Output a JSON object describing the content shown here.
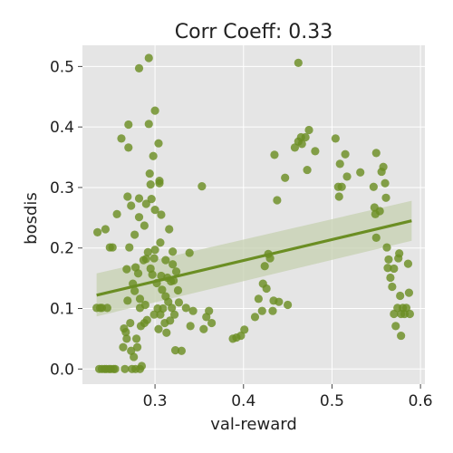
{
  "chart_data": {
    "type": "scatter",
    "title": "Corr Coeff: 0.33",
    "xlabel": "val-reward",
    "ylabel": "bosdis",
    "xlim": [
      0.218,
      0.605
    ],
    "ylim": [
      -0.025,
      0.535
    ],
    "xticks": [
      0.3,
      0.4,
      0.5,
      0.6
    ],
    "xtick_labels": [
      "0.3",
      "0.4",
      "0.5",
      "0.6"
    ],
    "yticks": [
      0.0,
      0.1,
      0.2,
      0.3,
      0.4,
      0.5
    ],
    "ytick_labels": [
      "0.0",
      "0.1",
      "0.2",
      "0.3",
      "0.4",
      "0.5"
    ],
    "grid": true,
    "background": "#e5e5e5",
    "point_color": "#6b8e23",
    "line_color": "#6b8e23",
    "band_color": "#c5d0b0",
    "regression": {
      "x": [
        0.234,
        0.59
      ],
      "y": [
        0.122,
        0.245
      ],
      "ci_upper": [
        0.158,
        0.278
      ],
      "ci_lower": [
        0.087,
        0.212
      ]
    },
    "points": [
      [
        0.234,
        0.101
      ],
      [
        0.235,
        0.226
      ],
      [
        0.237,
        0.0
      ],
      [
        0.238,
        0.101
      ],
      [
        0.24,
        0.0
      ],
      [
        0.24,
        0.101
      ],
      [
        0.243,
        0.0
      ],
      [
        0.244,
        0.231
      ],
      [
        0.245,
        0.0
      ],
      [
        0.246,
        0.101
      ],
      [
        0.248,
        0.0
      ],
      [
        0.249,
        0.201
      ],
      [
        0.25,
        0.0
      ],
      [
        0.252,
        0.201
      ],
      [
        0.253,
        0.0
      ],
      [
        0.255,
        0.0
      ],
      [
        0.257,
        0.256
      ],
      [
        0.262,
        0.381
      ],
      [
        0.264,
        0.036
      ],
      [
        0.265,
        0.067
      ],
      [
        0.266,
        0.0
      ],
      [
        0.267,
        0.061
      ],
      [
        0.268,
        0.165
      ],
      [
        0.268,
        0.05
      ],
      [
        0.269,
        0.113
      ],
      [
        0.269,
        0.285
      ],
      [
        0.27,
        0.404
      ],
      [
        0.27,
        0.366
      ],
      [
        0.271,
        0.201
      ],
      [
        0.272,
        0.076
      ],
      [
        0.273,
        0.03
      ],
      [
        0.273,
        0.27
      ],
      [
        0.274,
        0.0
      ],
      [
        0.275,
        0.141
      ],
      [
        0.276,
        0.02
      ],
      [
        0.277,
        0.222
      ],
      [
        0.277,
        0.129
      ],
      [
        0.278,
        0.168
      ],
      [
        0.278,
        0.0
      ],
      [
        0.279,
        0.05
      ],
      [
        0.28,
        0.036
      ],
      [
        0.281,
        0.158
      ],
      [
        0.282,
        0.497
      ],
      [
        0.282,
        0.282
      ],
      [
        0.282,
        0.251
      ],
      [
        0.283,
        0.116
      ],
      [
        0.283,
        0.101
      ],
      [
        0.283,
        0.0
      ],
      [
        0.284,
        0.071
      ],
      [
        0.285,
        0.005
      ],
      [
        0.287,
        0.18
      ],
      [
        0.288,
        0.076
      ],
      [
        0.288,
        0.237
      ],
      [
        0.289,
        0.106
      ],
      [
        0.29,
        0.273
      ],
      [
        0.29,
        0.182
      ],
      [
        0.291,
        0.081
      ],
      [
        0.292,
        0.193
      ],
      [
        0.293,
        0.514
      ],
      [
        0.293,
        0.405
      ],
      [
        0.294,
        0.323
      ],
      [
        0.295,
        0.305
      ],
      [
        0.295,
        0.166
      ],
      [
        0.296,
        0.281
      ],
      [
        0.297,
        0.156
      ],
      [
        0.298,
        0.352
      ],
      [
        0.299,
        0.183
      ],
      [
        0.299,
        0.09
      ],
      [
        0.3,
        0.427
      ],
      [
        0.3,
        0.263
      ],
      [
        0.3,
        0.197
      ],
      [
        0.302,
        0.142
      ],
      [
        0.303,
        0.1
      ],
      [
        0.304,
        0.373
      ],
      [
        0.304,
        0.066
      ],
      [
        0.305,
        0.311
      ],
      [
        0.305,
        0.307
      ],
      [
        0.306,
        0.209
      ],
      [
        0.306,
        0.09
      ],
      [
        0.307,
        0.255
      ],
      [
        0.307,
        0.154
      ],
      [
        0.308,
        0.131
      ],
      [
        0.309,
        0.1
      ],
      [
        0.311,
        0.076
      ],
      [
        0.312,
        0.18
      ],
      [
        0.312,
        0.12
      ],
      [
        0.313,
        0.06
      ],
      [
        0.314,
        0.151
      ],
      [
        0.315,
        0.111
      ],
      [
        0.316,
        0.231
      ],
      [
        0.317,
        0.08
      ],
      [
        0.318,
        0.145
      ],
      [
        0.319,
        0.101
      ],
      [
        0.32,
        0.194
      ],
      [
        0.32,
        0.173
      ],
      [
        0.321,
        0.146
      ],
      [
        0.322,
        0.09
      ],
      [
        0.323,
        0.031
      ],
      [
        0.324,
        0.161
      ],
      [
        0.326,
        0.13
      ],
      [
        0.327,
        0.11
      ],
      [
        0.33,
        0.03
      ],
      [
        0.335,
        0.101
      ],
      [
        0.339,
        0.192
      ],
      [
        0.34,
        0.071
      ],
      [
        0.343,
        0.096
      ],
      [
        0.353,
        0.302
      ],
      [
        0.355,
        0.066
      ],
      [
        0.358,
        0.086
      ],
      [
        0.361,
        0.096
      ],
      [
        0.364,
        0.076
      ],
      [
        0.388,
        0.05
      ],
      [
        0.392,
        0.052
      ],
      [
        0.397,
        0.055
      ],
      [
        0.401,
        0.065
      ],
      [
        0.413,
        0.086
      ],
      [
        0.417,
        0.116
      ],
      [
        0.421,
        0.096
      ],
      [
        0.422,
        0.141
      ],
      [
        0.424,
        0.17
      ],
      [
        0.426,
        0.133
      ],
      [
        0.428,
        0.19
      ],
      [
        0.43,
        0.183
      ],
      [
        0.433,
        0.096
      ],
      [
        0.434,
        0.113
      ],
      [
        0.435,
        0.354
      ],
      [
        0.438,
        0.279
      ],
      [
        0.44,
        0.111
      ],
      [
        0.447,
        0.316
      ],
      [
        0.45,
        0.106
      ],
      [
        0.458,
        0.366
      ],
      [
        0.462,
        0.506
      ],
      [
        0.462,
        0.376
      ],
      [
        0.465,
        0.383
      ],
      [
        0.466,
        0.372
      ],
      [
        0.47,
        0.383
      ],
      [
        0.472,
        0.329
      ],
      [
        0.474,
        0.395
      ],
      [
        0.481,
        0.36
      ],
      [
        0.504,
        0.381
      ],
      [
        0.507,
        0.301
      ],
      [
        0.508,
        0.285
      ],
      [
        0.509,
        0.339
      ],
      [
        0.511,
        0.301
      ],
      [
        0.515,
        0.355
      ],
      [
        0.517,
        0.318
      ],
      [
        0.532,
        0.325
      ],
      [
        0.547,
        0.301
      ],
      [
        0.548,
        0.267
      ],
      [
        0.549,
        0.256
      ],
      [
        0.55,
        0.357
      ],
      [
        0.55,
        0.217
      ],
      [
        0.554,
        0.261
      ],
      [
        0.556,
        0.326
      ],
      [
        0.558,
        0.334
      ],
      [
        0.56,
        0.307
      ],
      [
        0.561,
        0.283
      ],
      [
        0.562,
        0.201
      ],
      [
        0.563,
        0.167
      ],
      [
        0.564,
        0.181
      ],
      [
        0.566,
        0.151
      ],
      [
        0.568,
        0.136
      ],
      [
        0.57,
        0.091
      ],
      [
        0.57,
        0.166
      ],
      [
        0.572,
        0.071
      ],
      [
        0.574,
        0.101
      ],
      [
        0.575,
        0.183
      ],
      [
        0.576,
        0.191
      ],
      [
        0.577,
        0.121
      ],
      [
        0.578,
        0.091
      ],
      [
        0.578,
        0.055
      ],
      [
        0.58,
        0.101
      ],
      [
        0.582,
        0.091
      ],
      [
        0.584,
        0.101
      ],
      [
        0.586,
        0.174
      ],
      [
        0.587,
        0.126
      ],
      [
        0.588,
        0.091
      ]
    ]
  }
}
